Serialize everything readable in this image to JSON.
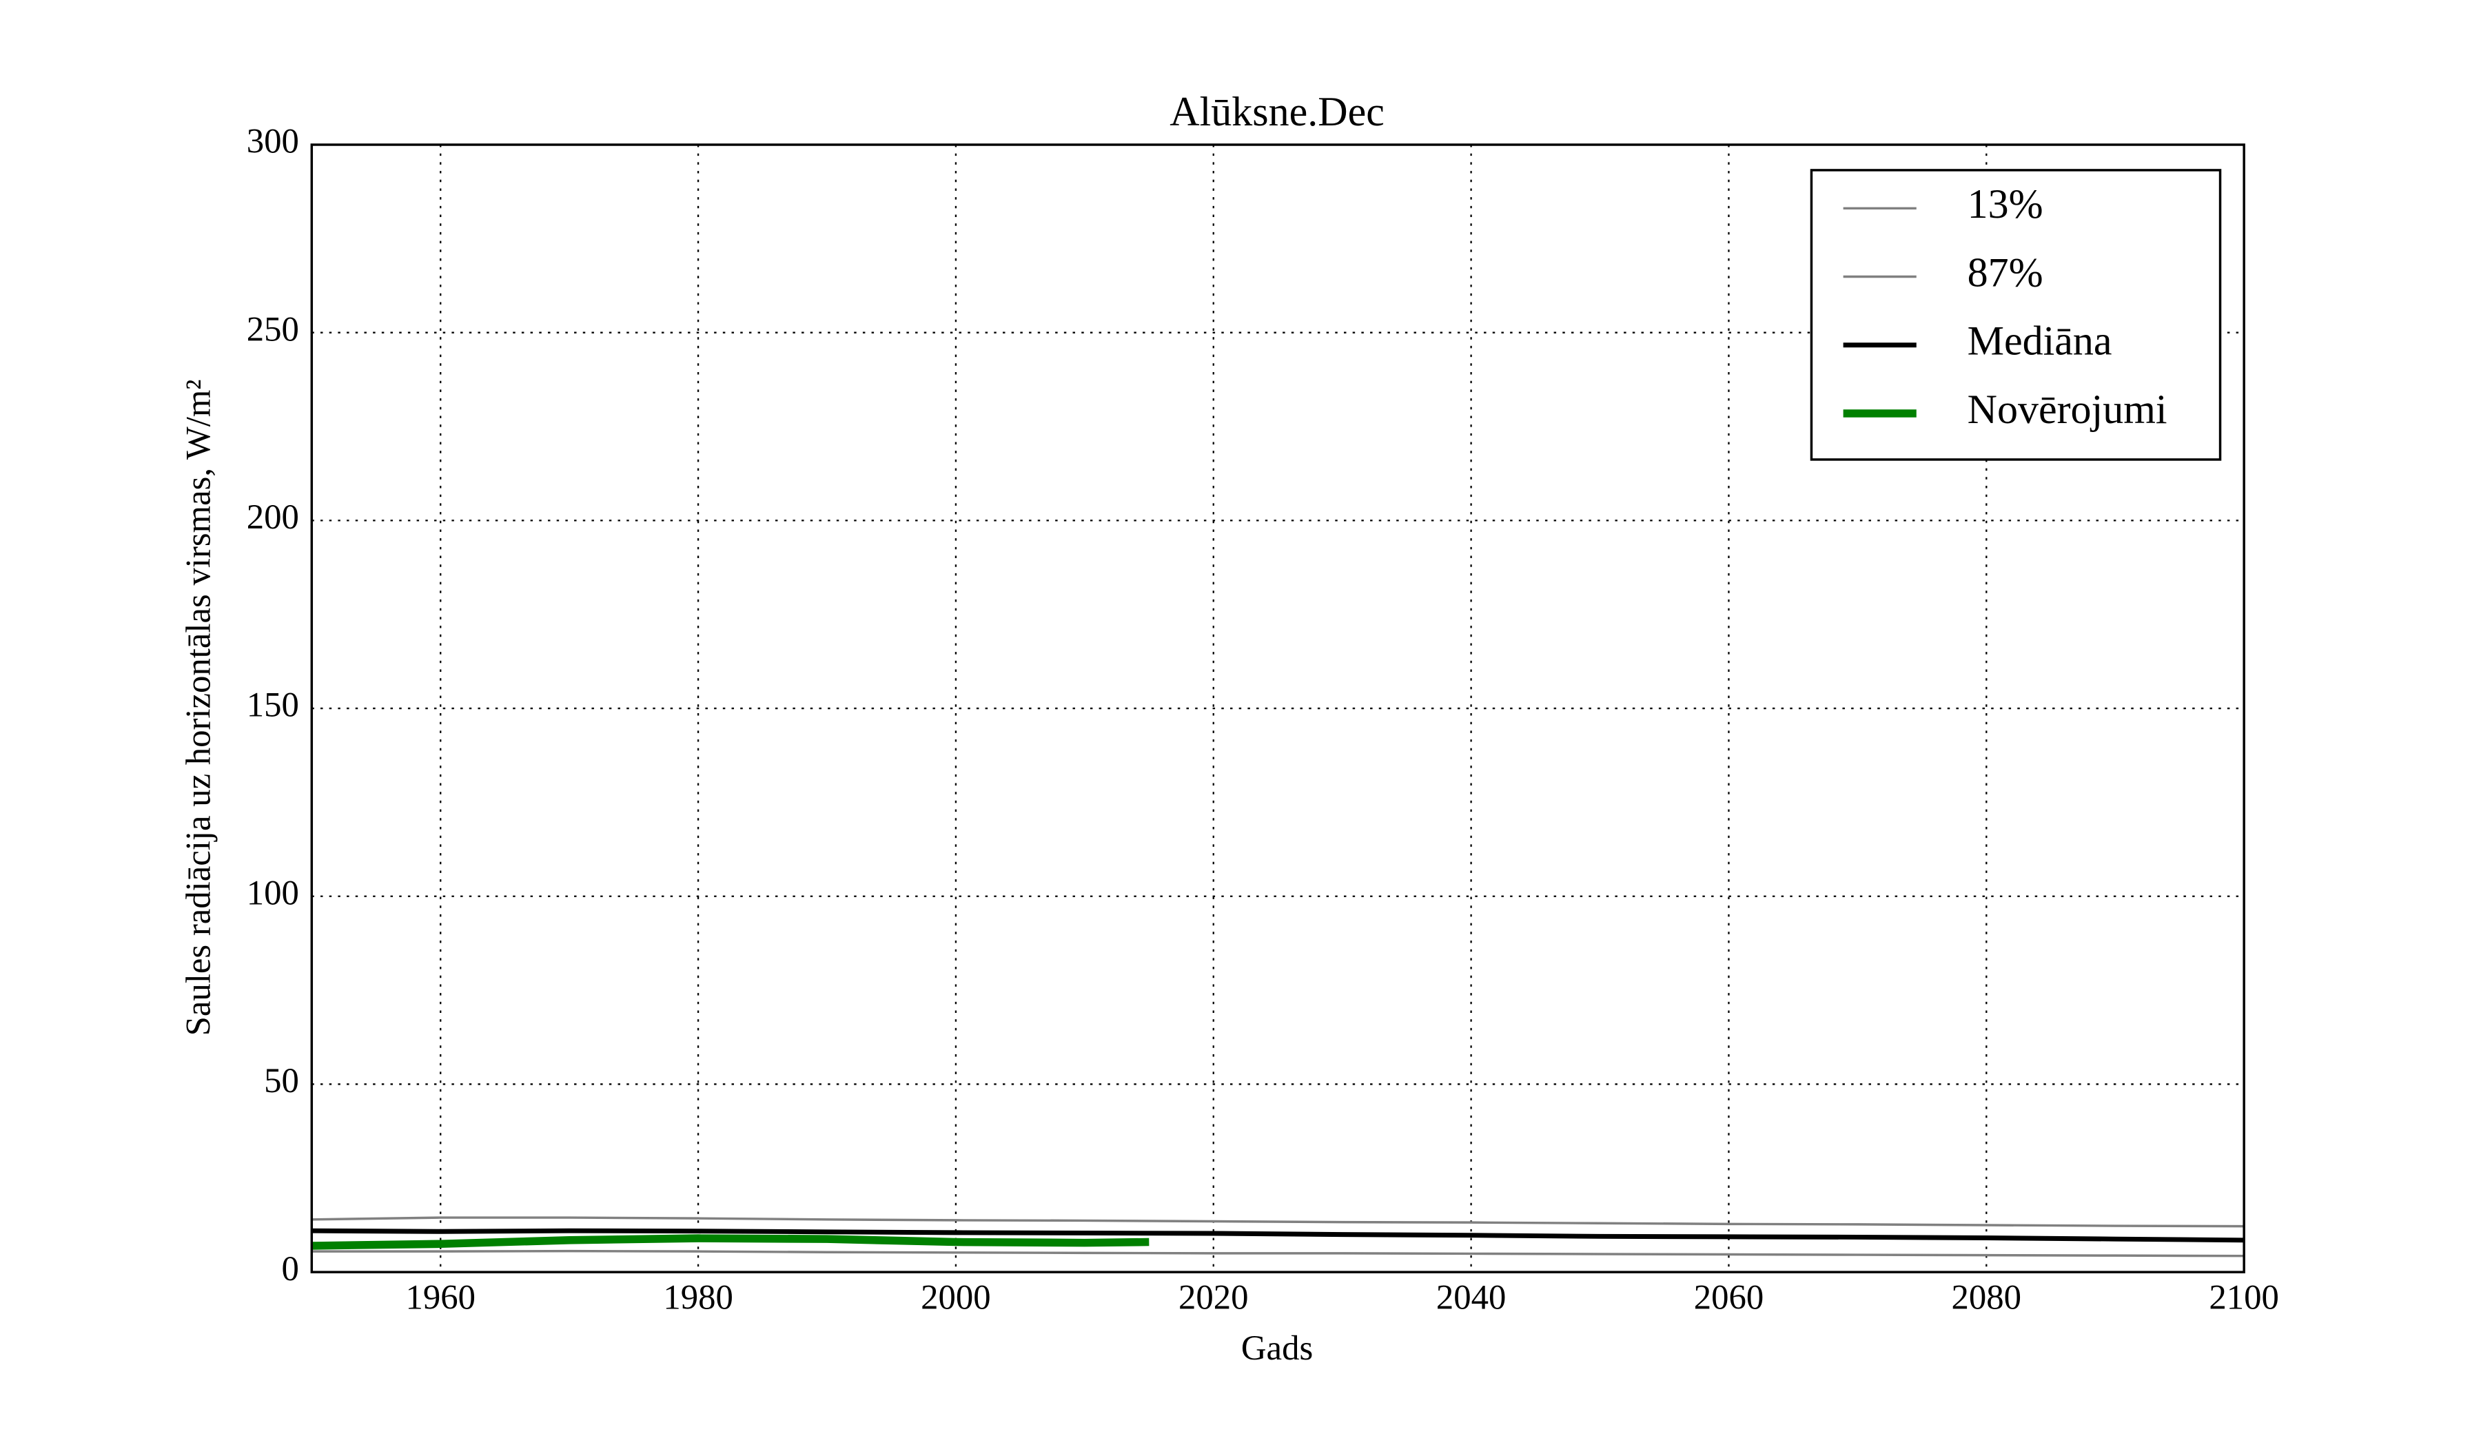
{
  "chart_data": {
    "type": "line",
    "title": "Alūksne.Dec",
    "xlabel": "Gads",
    "ylabel": "Saules radiācija uz horizontālas virsmas, W/m²",
    "x": [
      1950,
      1960,
      1970,
      1980,
      1990,
      2000,
      2010,
      2020,
      2030,
      2040,
      2050,
      2060,
      2070,
      2080,
      2090,
      2100
    ],
    "series": [
      {
        "name": "13%",
        "color": "#808080",
        "values": [
          5.5,
          5.5,
          5.6,
          5.5,
          5.3,
          5.2,
          5.1,
          5,
          5,
          4.9,
          4.8,
          4.7,
          4.6,
          4.5,
          4.4,
          4.3
        ]
      },
      {
        "name": "87%",
        "color": "#808080",
        "values": [
          14,
          14.5,
          14.5,
          14.3,
          14,
          13.8,
          13.7,
          13.5,
          13.3,
          13.2,
          13,
          12.8,
          12.7,
          12.5,
          12.3,
          12.2
        ]
      },
      {
        "name": "Mediāna",
        "color": "#000000",
        "values": [
          11,
          10.8,
          11,
          10.9,
          10.7,
          10.5,
          10.4,
          10.3,
          10,
          9.8,
          9.5,
          9.4,
          9.3,
          9.1,
          8.8,
          8.5
        ]
      },
      {
        "name": "Novērojumi",
        "color": "#008000",
        "x": [
          1950,
          1960,
          1970,
          1980,
          1990,
          2000,
          2010,
          2015
        ],
        "values": [
          7,
          7.5,
          8.5,
          9,
          8.8,
          8,
          7.8,
          8
        ]
      }
    ],
    "xlim": [
      1950,
      2100
    ],
    "xticks": [
      1960,
      1980,
      2000,
      2020,
      2040,
      2060,
      2080,
      2100
    ],
    "ylim": [
      0,
      300
    ],
    "yticks": [
      0,
      50,
      100,
      150,
      200,
      250,
      300
    ],
    "grid": true,
    "legend": "upper right"
  }
}
